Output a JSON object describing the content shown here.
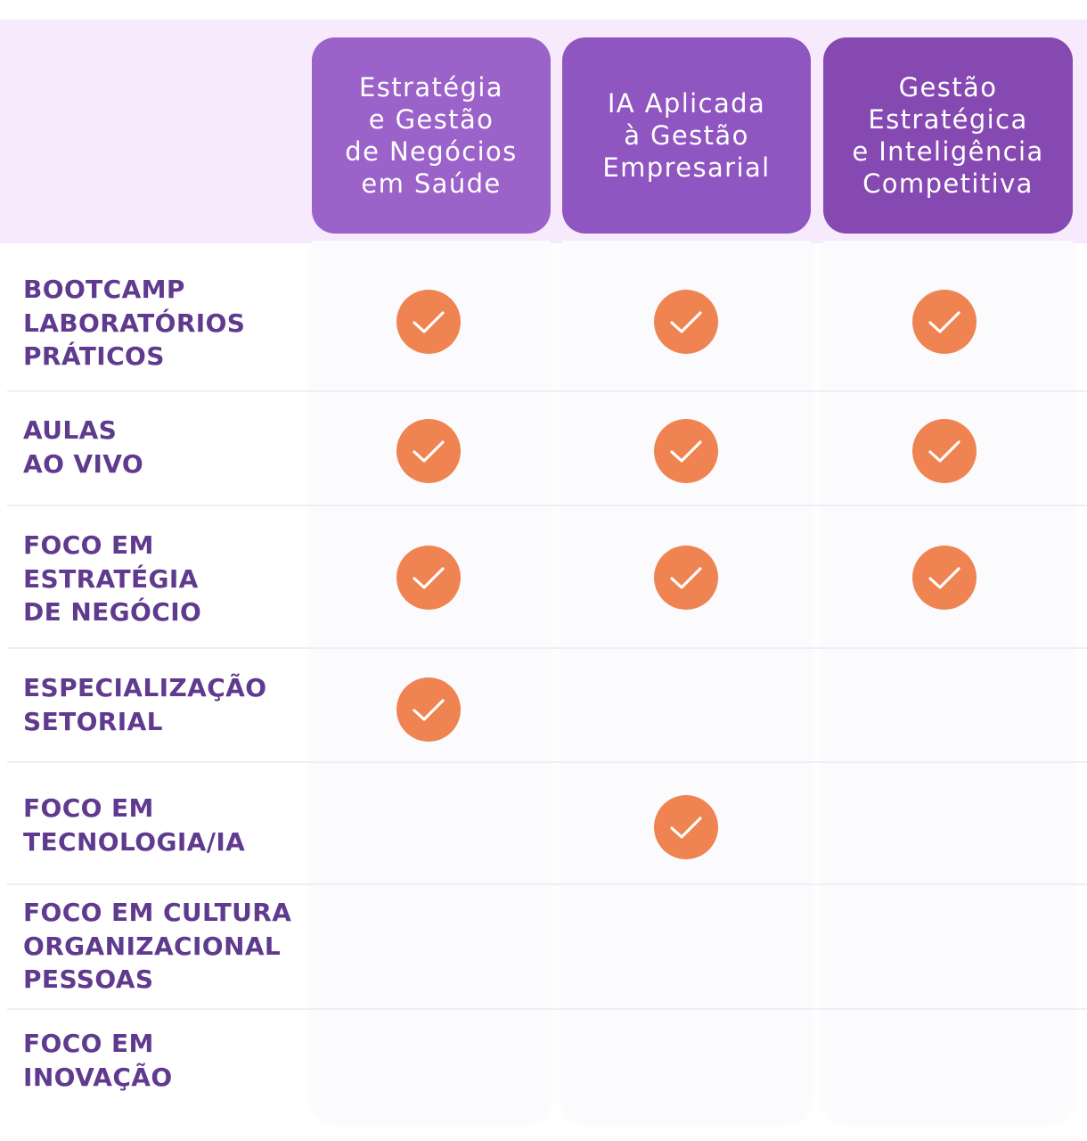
{
  "columns": [
    {
      "title": "Estratégia\ne Gestão\nde Negócios\nem Saúde",
      "color": "#9b62c9"
    },
    {
      "title": "IA Aplicada\nà Gestão\nEmpresarial",
      "color": "#8f55c1"
    },
    {
      "title": "Gestão\nEstratégica\ne Inteligência\nCompetitiva",
      "color": "#8649b2"
    }
  ],
  "rows": [
    {
      "label": "BOOTCAMP\nLABORATÓRIOS\nPRÁTICOS",
      "checks": [
        true,
        true,
        true
      ]
    },
    {
      "label": "AULAS\nAO VIVO",
      "checks": [
        true,
        true,
        true
      ]
    },
    {
      "label": "FOCO EM\nESTRATÉGIA\nDE NEGÓCIO",
      "checks": [
        true,
        true,
        true
      ]
    },
    {
      "label": "ESPECIALIZAÇÃO\nSETORIAL",
      "checks": [
        true,
        false,
        false
      ]
    },
    {
      "label": "FOCO EM\nTECNOLOGIA/IA",
      "checks": [
        false,
        true,
        false
      ]
    },
    {
      "label": "FOCO EM CULTURA\nORGANIZACIONAL\nPESSOAS",
      "checks": [
        false,
        false,
        false
      ]
    },
    {
      "label": "FOCO EM\nINOVAÇÃO",
      "checks": [
        false,
        false,
        false
      ]
    }
  ],
  "icons": {
    "check": "check-circle-icon"
  },
  "colors": {
    "label_text": "#5f3a8e",
    "check_fill": "#ef8352",
    "header_band": "#f6eafc"
  }
}
